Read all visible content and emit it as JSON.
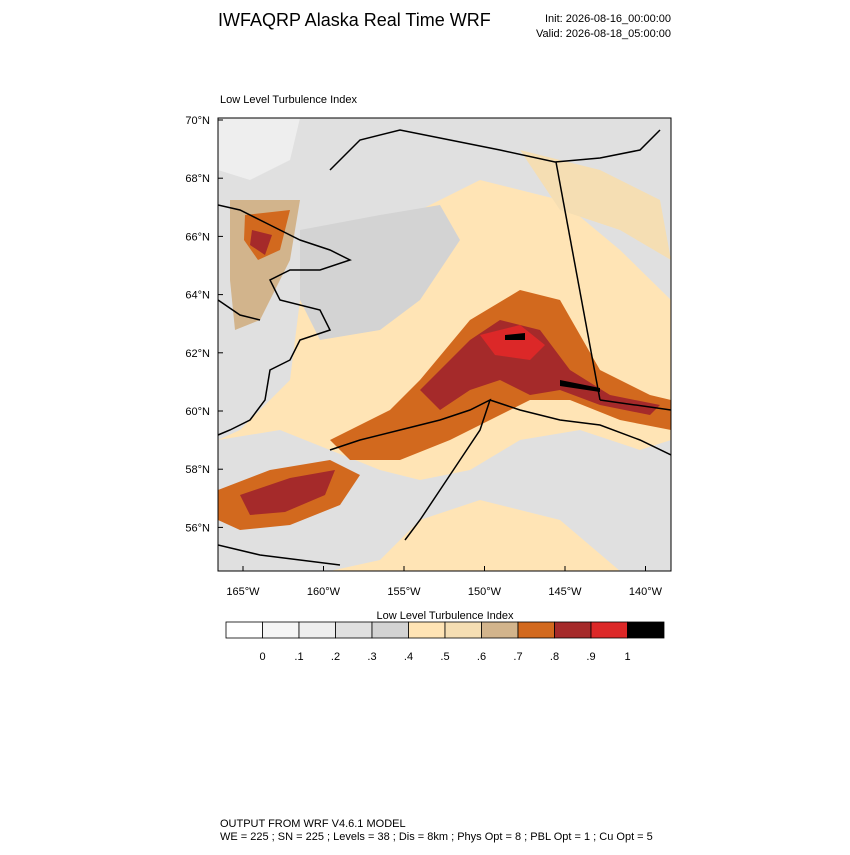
{
  "header": {
    "title": "IWFAQRP Alaska Real Time WRF",
    "init": "Init: 2026-08-16_00:00:00",
    "valid": "Valid: 2026-08-18_05:00:00"
  },
  "map": {
    "subtitle": "Low Level Turbulence Index",
    "lat_ticks": [
      {
        "value": 70,
        "label": "70°N"
      },
      {
        "value": 68,
        "label": "68°N"
      },
      {
        "value": 66,
        "label": "66°N"
      },
      {
        "value": 64,
        "label": "64°N"
      },
      {
        "value": 62,
        "label": "62°N"
      },
      {
        "value": 60,
        "label": "60°N"
      },
      {
        "value": 58,
        "label": "58°N"
      },
      {
        "value": 56,
        "label": "56°N"
      }
    ],
    "lon_ticks": [
      {
        "value": -165,
        "label": "165°W"
      },
      {
        "value": -160,
        "label": "160°W"
      },
      {
        "value": -155,
        "label": "155°W"
      },
      {
        "value": -150,
        "label": "150°W"
      },
      {
        "value": -145,
        "label": "145°W"
      },
      {
        "value": -140,
        "label": "140°W"
      }
    ]
  },
  "colorbar": {
    "title": "Low Level Turbulence Index",
    "colors": [
      "#ffffff",
      "#f5f5f5",
      "#eeeeee",
      "#e0e0e0",
      "#d3d3d3",
      "#ffe4b5",
      "#f5deb3",
      "#d2b48c",
      "#d2691e",
      "#a52a2a",
      "#dc2828",
      "#000000"
    ],
    "ticks": [
      0,
      {
        "value": 0.1,
        "label": ".1"
      },
      {
        "value": 0.2,
        "label": ".2"
      },
      {
        "value": 0.3,
        "label": ".3"
      },
      {
        "value": 0.4,
        "label": ".4"
      },
      {
        "value": 0.5,
        "label": ".5"
      },
      {
        "value": 0.6,
        "label": ".6"
      },
      {
        "value": 0.7,
        "label": ".7"
      },
      {
        "value": 0.8,
        "label": ".8"
      },
      {
        "value": 0.9,
        "label": ".9"
      },
      1
    ]
  },
  "footer": {
    "line1": "OUTPUT FROM WRF V4.6.1 MODEL",
    "line2": "WE = 225 ; SN = 225 ; Levels = 38 ; Dis = 8km ; Phys Opt = 8 ; PBL Opt = 1 ; Cu Opt = 5"
  }
}
